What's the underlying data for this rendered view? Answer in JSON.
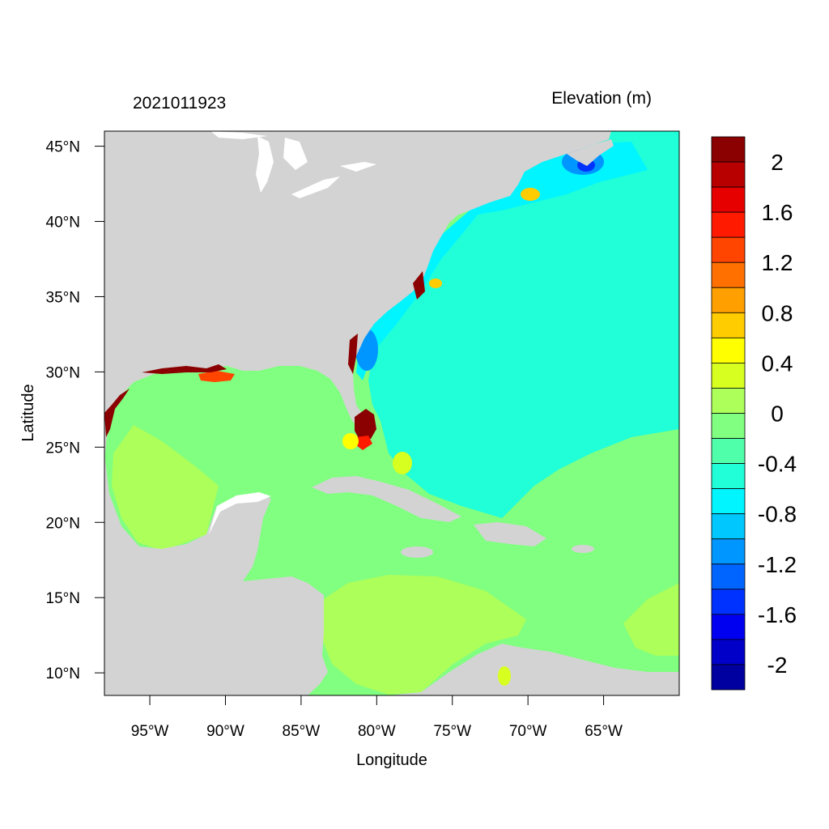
{
  "header": {
    "timestamp": "2021011923",
    "variable_title": "Elevation (m)"
  },
  "axes": {
    "x_label": "Longitude",
    "y_label": "Latitude",
    "lon_range": [
      -98,
      -60
    ],
    "lat_range": [
      8.5,
      46
    ],
    "x_ticks": [
      {
        "value": -95,
        "label": "95°W"
      },
      {
        "value": -90,
        "label": "90°W"
      },
      {
        "value": -85,
        "label": "85°W"
      },
      {
        "value": -80,
        "label": "80°W"
      },
      {
        "value": -75,
        "label": "75°W"
      },
      {
        "value": -70,
        "label": "70°W"
      },
      {
        "value": -65,
        "label": "65°W"
      }
    ],
    "y_ticks": [
      {
        "value": 45,
        "label": "45°N"
      },
      {
        "value": 40,
        "label": "40°N"
      },
      {
        "value": 35,
        "label": "35°N"
      },
      {
        "value": 30,
        "label": "30°N"
      },
      {
        "value": 25,
        "label": "25°N"
      },
      {
        "value": 20,
        "label": "20°N"
      },
      {
        "value": 15,
        "label": "15°N"
      },
      {
        "value": 10,
        "label": "10°N"
      }
    ]
  },
  "colorbar": {
    "colors_top_to_bottom": [
      "#8b0000",
      "#b80000",
      "#e60000",
      "#ff1a00",
      "#ff4500",
      "#ff7000",
      "#ff9f00",
      "#ffcc00",
      "#ffff00",
      "#d7ff20",
      "#adff5a",
      "#80ff80",
      "#50ffaa",
      "#20ffd8",
      "#00f5ff",
      "#00c8ff",
      "#0096ff",
      "#0064ff",
      "#0032ff",
      "#0000f0",
      "#0000c8",
      "#0000a0"
    ],
    "labels": [
      {
        "value": 2,
        "text": "2"
      },
      {
        "value": 1.6,
        "text": "1.6"
      },
      {
        "value": 1.2,
        "text": "1.2"
      },
      {
        "value": 0.8,
        "text": "0.8"
      },
      {
        "value": 0.4,
        "text": "0.4"
      },
      {
        "value": 0,
        "text": "0"
      },
      {
        "value": -0.4,
        "text": "-0.4"
      },
      {
        "value": -0.8,
        "text": "-0.8"
      },
      {
        "value": -1.2,
        "text": "-1.2"
      },
      {
        "value": -1.6,
        "text": "-1.6"
      },
      {
        "value": -2,
        "text": "-2"
      }
    ]
  },
  "colors": {
    "land": "#d3d3d3",
    "lakes": "#ffffff",
    "ocean_base": "#80ff80",
    "atlantic_basin": "#20ffd8",
    "shelf_negative": "#00f5ff",
    "western_gulf_positive": "#adff5a",
    "southern_caribbean_positive": "#adff5a",
    "storm_surge_high": "#8b0000"
  }
}
